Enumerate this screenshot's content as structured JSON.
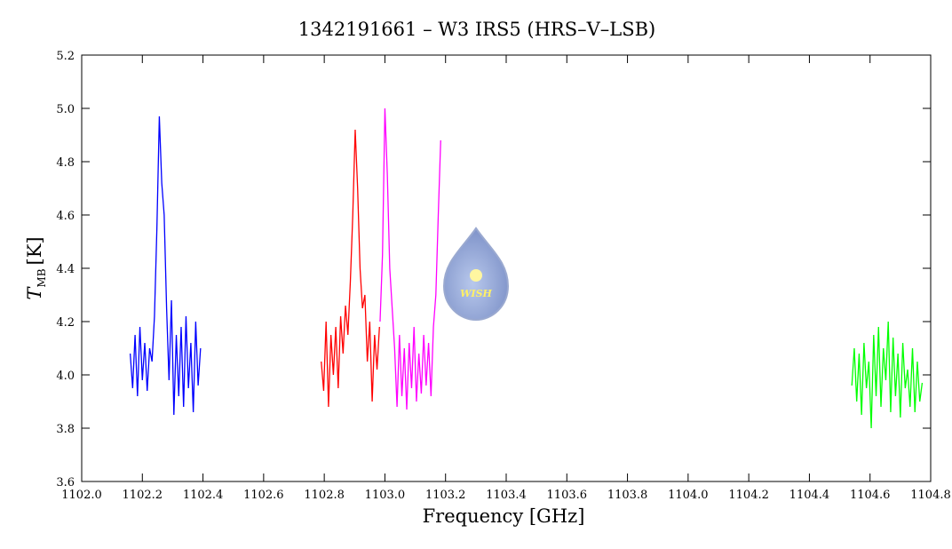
{
  "chart_data": {
    "type": "line",
    "title": "1342191661 – W3 IRS5 (HRS–V–LSB)",
    "xlabel": "Frequency [GHz]",
    "ylabel": {
      "symbol": "T",
      "subscript": "MB",
      "unit": "[K]"
    },
    "logo_text": "WISH",
    "xlim": [
      1102.0,
      1104.8
    ],
    "ylim": [
      3.6,
      5.2
    ],
    "xticks": [
      {
        "value": 1102.0,
        "label": "1102.0"
      },
      1102.2,
      1102.4,
      1102.6,
      1102.8,
      {
        "value": 1103.0,
        "label": "1103.0"
      },
      1103.2,
      1103.4,
      1103.6,
      1103.8,
      {
        "value": 1104.0,
        "label": "1104.0"
      },
      1104.2,
      1104.4,
      1104.6,
      1104.8
    ],
    "yticks": [
      3.6,
      3.8,
      {
        "value": 4.0,
        "label": "4.0"
      },
      4.2,
      4.4,
      4.6,
      4.8,
      {
        "value": 5.0,
        "label": "5.0"
      },
      5.2
    ],
    "series": [
      {
        "color": "#0000ff",
        "x": [
          1102.16,
          1102.168,
          1102.176,
          1102.184,
          1102.192,
          1102.2,
          1102.208,
          1102.216,
          1102.224,
          1102.232,
          1102.24,
          1102.248,
          1102.256,
          1102.264,
          1102.272,
          1102.28,
          1102.288,
          1102.296,
          1102.304,
          1102.312,
          1102.32,
          1102.328,
          1102.336,
          1102.344,
          1102.352,
          1102.36,
          1102.368,
          1102.376,
          1102.384,
          1102.392
        ],
        "values": [
          4.08,
          3.95,
          4.15,
          3.92,
          4.18,
          3.98,
          4.12,
          3.94,
          4.1,
          4.05,
          4.22,
          4.55,
          4.97,
          4.72,
          4.6,
          4.25,
          3.98,
          4.28,
          3.85,
          4.15,
          3.92,
          4.18,
          3.88,
          4.22,
          3.95,
          4.12,
          3.86,
          4.2,
          3.96,
          4.1
        ]
      },
      {
        "color": "#ff0000",
        "x": [
          1102.79,
          1102.798,
          1102.806,
          1102.814,
          1102.822,
          1102.83,
          1102.838,
          1102.846,
          1102.854,
          1102.862,
          1102.87,
          1102.878,
          1102.886,
          1102.894,
          1102.902,
          1102.91,
          1102.918,
          1102.926,
          1102.934,
          1102.942,
          1102.95,
          1102.958,
          1102.966,
          1102.974,
          1102.982
        ],
        "values": [
          4.05,
          3.94,
          4.2,
          3.88,
          4.15,
          4.0,
          4.18,
          3.95,
          4.22,
          4.08,
          4.26,
          4.15,
          4.35,
          4.6,
          4.92,
          4.7,
          4.4,
          4.25,
          4.3,
          4.05,
          4.2,
          3.9,
          4.15,
          4.02,
          4.18
        ]
      },
      {
        "color": "#ff00ff",
        "x": [
          1102.984,
          1102.992,
          1103.0,
          1103.008,
          1103.016,
          1103.024,
          1103.032,
          1103.04,
          1103.048,
          1103.056,
          1103.064,
          1103.072,
          1103.08,
          1103.088,
          1103.096,
          1103.104,
          1103.112,
          1103.12,
          1103.128,
          1103.136,
          1103.144,
          1103.152,
          1103.16,
          1103.168,
          1103.176,
          1103.184
        ],
        "values": [
          4.2,
          4.45,
          5.0,
          4.75,
          4.4,
          4.25,
          4.1,
          3.88,
          4.15,
          3.92,
          4.1,
          3.87,
          4.12,
          3.95,
          4.18,
          3.9,
          4.08,
          3.93,
          4.15,
          3.96,
          4.12,
          3.92,
          4.18,
          4.3,
          4.6,
          4.88
        ]
      },
      {
        "color": "#00ff00",
        "x": [
          1104.54,
          1104.548,
          1104.556,
          1104.564,
          1104.572,
          1104.58,
          1104.588,
          1104.596,
          1104.604,
          1104.612,
          1104.62,
          1104.628,
          1104.636,
          1104.644,
          1104.652,
          1104.66,
          1104.668,
          1104.676,
          1104.684,
          1104.692,
          1104.7,
          1104.708,
          1104.716,
          1104.724,
          1104.732,
          1104.74,
          1104.748,
          1104.756,
          1104.764,
          1104.772
        ],
        "values": [
          3.96,
          4.1,
          3.9,
          4.08,
          3.85,
          4.12,
          3.95,
          4.05,
          3.8,
          4.15,
          3.92,
          4.18,
          3.88,
          4.1,
          3.98,
          4.2,
          3.86,
          4.14,
          3.92,
          4.08,
          3.84,
          4.12,
          3.95,
          4.02,
          3.88,
          4.1,
          3.86,
          4.05,
          3.9,
          3.97
        ]
      }
    ]
  }
}
